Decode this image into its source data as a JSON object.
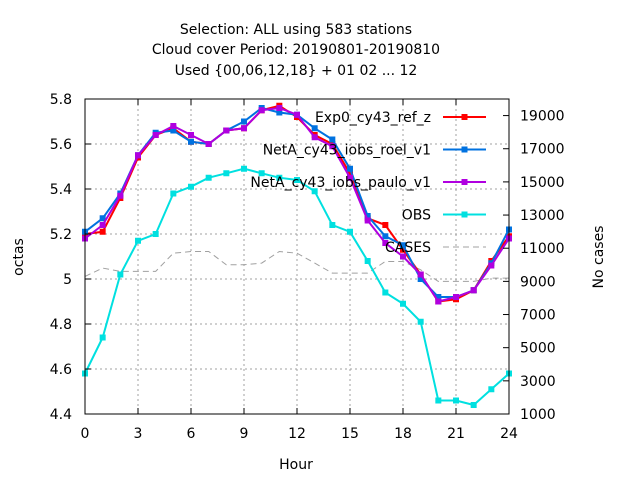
{
  "chart_data": {
    "type": "line",
    "title_lines": [
      "Selection: ALL using   583 stations",
      "Cloud cover   Period: 20190801-20190810",
      "Used {00,06,12,18} + 01 02 ... 12"
    ],
    "xlabel": "Hour",
    "ylabel": "octas",
    "y2label": "No cases",
    "xlim": [
      0,
      24
    ],
    "ylim": [
      4.4,
      5.8
    ],
    "y2lim": [
      1000,
      20000
    ],
    "xticks": [
      0,
      3,
      6,
      9,
      12,
      15,
      18,
      21,
      24
    ],
    "yticks": [
      4.4,
      4.6,
      4.8,
      5.0,
      5.2,
      5.4,
      5.6,
      5.8
    ],
    "ytick_labels": [
      "4.4",
      "4.6",
      "4.8",
      "5",
      "5.2",
      "5.4",
      "5.6",
      "5.8"
    ],
    "y2ticks": [
      1000,
      3000,
      5000,
      7000,
      9000,
      11000,
      13000,
      15000,
      17000,
      19000
    ],
    "grid": true,
    "legend_position": "top-right",
    "x": [
      0,
      1,
      2,
      3,
      4,
      5,
      6,
      7,
      8,
      9,
      10,
      11,
      12,
      13,
      14,
      15,
      16,
      17,
      18,
      19,
      20,
      21,
      22,
      23,
      24
    ],
    "series": [
      {
        "name": "Exp0_cy43_ref_z",
        "color": "#ff0000",
        "marker": "square",
        "axis": "left",
        "values": [
          5.2,
          5.21,
          5.36,
          5.54,
          5.64,
          5.67,
          5.61,
          5.6,
          5.66,
          5.67,
          5.75,
          5.77,
          5.72,
          5.64,
          5.6,
          5.47,
          5.27,
          5.24,
          5.13,
          5.02,
          4.9,
          4.91,
          4.95,
          5.08,
          5.19
        ]
      },
      {
        "name": "NetA_cy43_iobs_roel_v1",
        "color": "#0072e0",
        "marker": "square",
        "axis": "left",
        "values": [
          5.21,
          5.27,
          5.38,
          5.55,
          5.65,
          5.66,
          5.61,
          5.6,
          5.66,
          5.7,
          5.76,
          5.74,
          5.73,
          5.67,
          5.62,
          5.49,
          5.28,
          5.19,
          5.15,
          5.0,
          4.92,
          4.92,
          4.95,
          5.07,
          5.22
        ]
      },
      {
        "name": "NetA_cy43_iobs_paulo_v1",
        "color": "#b000e0",
        "marker": "square",
        "axis": "left",
        "values": [
          5.18,
          5.24,
          5.37,
          5.55,
          5.64,
          5.68,
          5.64,
          5.6,
          5.66,
          5.67,
          5.75,
          5.76,
          5.73,
          5.63,
          5.59,
          5.45,
          5.26,
          5.16,
          5.1,
          5.02,
          4.9,
          4.92,
          4.95,
          5.06,
          5.18
        ]
      },
      {
        "name": "OBS",
        "color": "#00e0e0",
        "marker": "square",
        "axis": "left",
        "values": [
          4.58,
          4.74,
          5.02,
          5.17,
          5.2,
          5.38,
          5.41,
          5.45,
          5.47,
          5.49,
          5.47,
          5.45,
          5.44,
          5.39,
          5.24,
          5.21,
          5.08,
          4.94,
          4.89,
          4.81,
          4.46,
          4.46,
          4.44,
          4.51,
          4.58
        ]
      },
      {
        "name": "CASES",
        "color": "#a0a0a0",
        "marker": "none",
        "dash": true,
        "axis": "right",
        "values": [
          9300,
          9800,
          9600,
          9600,
          9600,
          10700,
          10800,
          10800,
          10000,
          10000,
          10100,
          10800,
          10700,
          10100,
          9500,
          9500,
          9500,
          10200,
          10200,
          9700,
          9000,
          9000,
          9000,
          9200,
          9200
        ]
      }
    ]
  }
}
